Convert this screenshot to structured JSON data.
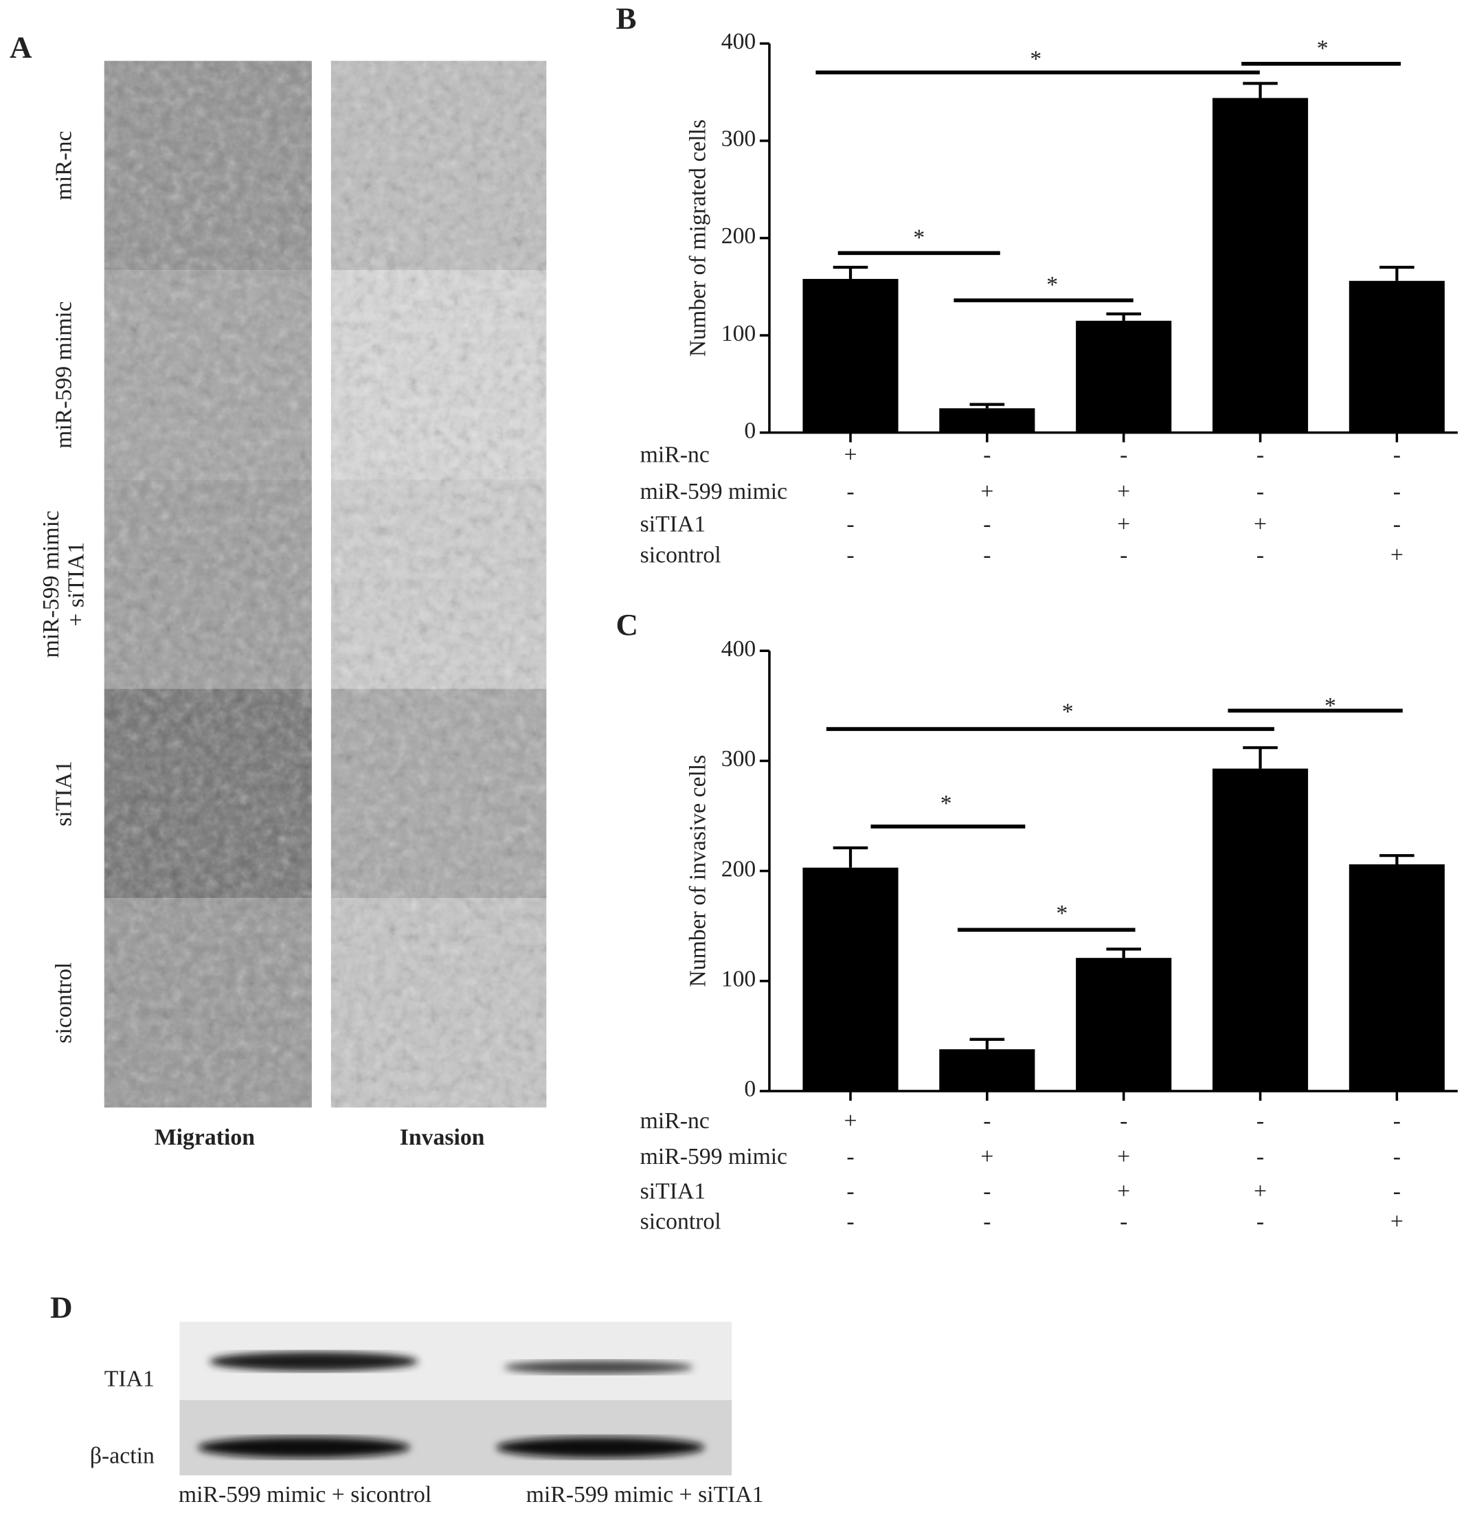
{
  "chart_data": [
    {
      "type": "bar",
      "panel_label": "B",
      "y_label": "Number of migrated cells",
      "values": [
        158,
        25,
        115,
        344,
        156
      ],
      "errors": [
        12,
        4,
        7,
        15,
        14
      ],
      "color": "#000000",
      "ylim": [
        0,
        400
      ],
      "yticks": [
        0,
        100,
        200,
        300,
        400
      ],
      "conditions": [
        {
          "name": "miR-nc",
          "signs": [
            "+",
            "-",
            "-",
            "-",
            "-"
          ]
        },
        {
          "name": "miR-599 mimic",
          "signs": [
            "-",
            "+",
            "+",
            "-",
            "-"
          ]
        },
        {
          "name": "siTIA1",
          "signs": [
            "-",
            "-",
            "+",
            "+",
            "-"
          ]
        },
        {
          "name": "sicontrol",
          "signs": [
            "-",
            "-",
            "-",
            "-",
            "+"
          ]
        }
      ],
      "annotations": [
        "*",
        "*",
        "*",
        "*"
      ]
    },
    {
      "type": "bar",
      "panel_label": "C",
      "y_label": "Number of invasive cells",
      "values": [
        203,
        38,
        121,
        293,
        206
      ],
      "errors": [
        18,
        9,
        8,
        19,
        8
      ],
      "color": "#000000",
      "ylim": [
        0,
        400
      ],
      "yticks": [
        0,
        100,
        200,
        300,
        400
      ],
      "conditions": [
        {
          "name": "miR-nc",
          "signs": [
            "+",
            "-",
            "-",
            "-",
            "-"
          ]
        },
        {
          "name": "miR-599 mimic",
          "signs": [
            "-",
            "+",
            "+",
            "-",
            "-"
          ]
        },
        {
          "name": "siTIA1",
          "signs": [
            "-",
            "-",
            "+",
            "+",
            "-"
          ]
        },
        {
          "name": "sicontrol",
          "signs": [
            "-",
            "-",
            "-",
            "-",
            "+"
          ]
        }
      ],
      "annotations": [
        "*",
        "*",
        "*",
        "*"
      ]
    }
  ],
  "panel_a": {
    "label": "A",
    "row_labels": [
      [
        "miR-nc"
      ],
      [
        "miR-599 mimic"
      ],
      [
        "miR-599 mimic",
        "+ siTIA1"
      ],
      [
        "siTIA1"
      ],
      [
        "sicontrol"
      ]
    ],
    "column_labels": [
      "Migration",
      "Invasion"
    ]
  },
  "panel_d": {
    "label": "D",
    "bands": [
      "TIA1",
      "β-actin"
    ],
    "lanes": [
      "miR-599 mimic + sicontrol",
      "miR-599 mimic + siTIA1"
    ]
  }
}
